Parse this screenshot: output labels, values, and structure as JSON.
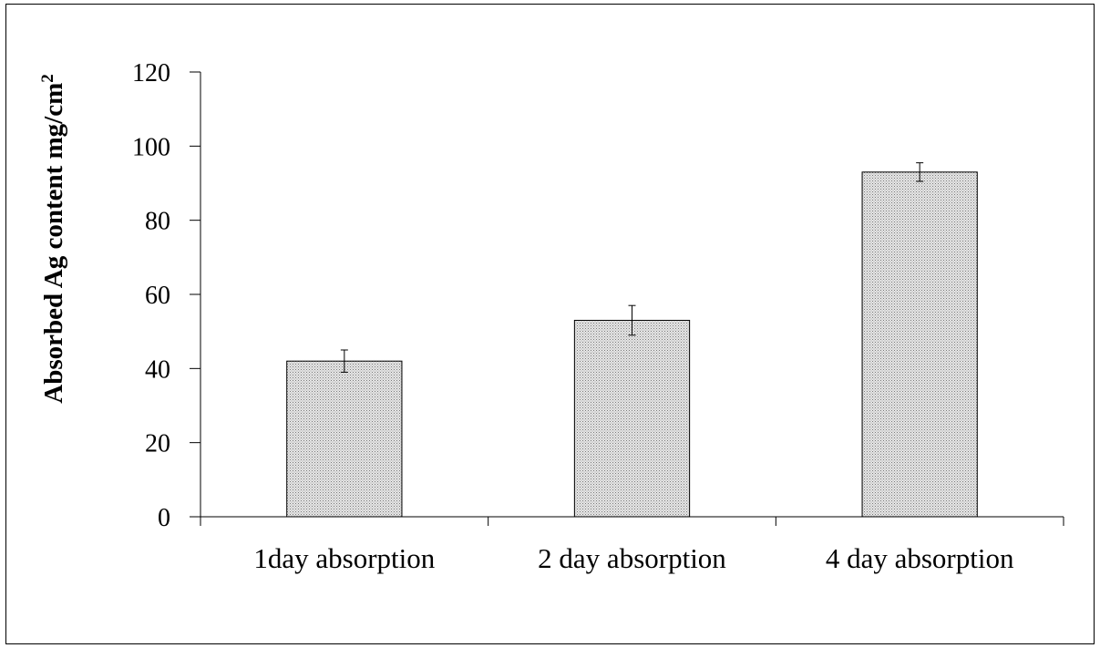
{
  "chart_data": {
    "type": "bar",
    "categories": [
      "1day absorption",
      "2 day absorption",
      "4 day absorption"
    ],
    "series": [
      {
        "values": [
          42,
          53,
          93
        ],
        "error": [
          3,
          4,
          2.5
        ]
      }
    ],
    "ylabel": "Absorbed Ag content  mg/cm",
    "ylabel_superscript": "2",
    "ylim": [
      0,
      120
    ],
    "yticks": [
      "0",
      "20",
      "40",
      "60",
      "80",
      "100",
      "120"
    ],
    "ytick_values": [
      0,
      20,
      40,
      60,
      80,
      100,
      120
    ],
    "grid": false,
    "legend": "none",
    "bar_fill": "#d8d8d8",
    "bar_pattern": "dotted",
    "axis_color": "#000000"
  }
}
